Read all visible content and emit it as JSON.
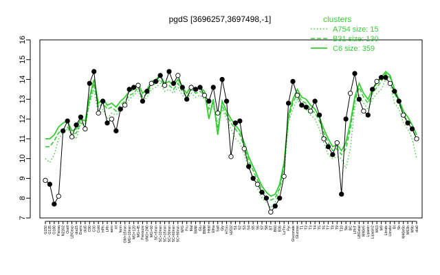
{
  "chart_data": {
    "type": "line",
    "title": "pgdS [3696257,3697498,-1]",
    "xlabel": "",
    "ylabel": "",
    "ylim": [
      7,
      16
    ],
    "yticks": [
      7,
      8,
      9,
      10,
      11,
      12,
      13,
      14,
      15,
      16
    ],
    "grid": false,
    "legend_title": "clusters",
    "legend_position": "top-right",
    "categories": [
      "G150",
      "G135",
      "G180",
      "Pairaq",
      "N2262",
      "Oxctl",
      "LBGexp",
      "dia15",
      "Diami",
      "dia5",
      "C90",
      "C30",
      "Cold",
      "HPh",
      "LPh",
      "aero",
      "nit",
      "ferm",
      "GM+15min",
      "MG+10min",
      "MG+120",
      "MG+45",
      "Pressure",
      "UNG+240",
      "MG+60",
      "SC+5min",
      "SC+10min",
      "SC+15min",
      "SC+30min",
      "SC+60min",
      "SC+90min",
      "M/G",
      "Fru",
      "Mal",
      "SMM",
      "Glu",
      "BMM",
      "Heat",
      "Etha",
      "Salt",
      "Gly",
      "HTim",
      "H2O2",
      "S1",
      "S2",
      "S3",
      "S4",
      "S5",
      "S6",
      "S7",
      "S8",
      "BT",
      "B60",
      "B36",
      "LoTm",
      "Pyr",
      "Gluconate",
      "Glucose",
      "T1",
      "T2",
      "T3",
      "T4",
      "T5",
      "T6",
      "T7",
      "T8",
      "T9",
      "T10",
      "Sw",
      "BC",
      "LPhT",
      "LBGstat",
      "M40e5",
      "Lipasin",
      "Lipasin2",
      "M63",
      "M9",
      "Lbrats",
      "Lbratsi",
      "BI",
      "Sb",
      "M40e5b",
      "M63b",
      "M9b",
      "dia0"
    ],
    "series": [
      {
        "name": "A754 size: 15",
        "style": "dotted",
        "color": "#33cc33",
        "values": [
          10.0,
          9.8,
          10.2,
          11.0,
          11.3,
          11.5,
          11.2,
          11.0,
          11.8,
          11.6,
          12.8,
          13.5,
          12.2,
          12.5,
          12.0,
          12.3,
          12.2,
          12.5,
          12.7,
          13.0,
          13.2,
          13.4,
          12.9,
          13.1,
          13.5,
          13.6,
          13.8,
          13.4,
          13.5,
          13.3,
          13.6,
          13.2,
          13.0,
          13.3,
          13.1,
          13.2,
          13.0,
          12.7,
          12.6,
          11.8,
          12.5,
          12.0,
          11.5,
          11.0,
          10.8,
          10.2,
          9.5,
          9.0,
          8.5,
          8.0,
          7.8,
          7.5,
          7.8,
          8.4,
          9.2,
          11.8,
          12.5,
          13.0,
          12.6,
          12.5,
          12.2,
          12.0,
          11.5,
          10.8,
          10.2,
          10.0,
          10.1,
          10.0,
          9.5,
          10.5,
          12.6,
          13.2,
          12.8,
          12.5,
          13.0,
          13.3,
          13.5,
          14.0,
          13.8,
          12.8,
          12.5,
          11.8,
          11.5,
          11.0,
          10.0
        ]
      },
      {
        "name": "B31 size: 130",
        "style": "dashed",
        "color": "#33cc33",
        "values": [
          10.6,
          10.6,
          10.9,
          11.3,
          11.5,
          11.6,
          11.2,
          11.3,
          11.8,
          11.7,
          12.9,
          13.8,
          12.6,
          12.8,
          12.5,
          12.6,
          12.4,
          12.7,
          12.9,
          13.2,
          13.3,
          13.6,
          13.1,
          13.3,
          13.7,
          13.8,
          14.0,
          13.6,
          13.7,
          13.5,
          13.8,
          13.4,
          13.1,
          13.5,
          13.3,
          13.4,
          13.2,
          12.5,
          12.8,
          11.5,
          12.7,
          12.2,
          11.8,
          11.5,
          11.2,
          10.6,
          9.9,
          9.4,
          8.9,
          8.4,
          8.1,
          7.9,
          8.0,
          8.5,
          9.6,
          12.0,
          12.8,
          13.3,
          12.9,
          12.8,
          12.5,
          12.3,
          11.9,
          11.3,
          10.8,
          10.4,
          10.5,
          10.2,
          10.5,
          11.5,
          12.9,
          13.6,
          13.1,
          12.8,
          13.3,
          13.6,
          13.9,
          14.3,
          14.1,
          13.3,
          12.8,
          12.2,
          11.9,
          11.5,
          11.0
        ]
      },
      {
        "name": "C6 size: 359",
        "style": "solid",
        "color": "#33cc33",
        "values": [
          11.0,
          11.0,
          11.2,
          11.6,
          11.8,
          11.9,
          11.4,
          11.5,
          12.0,
          11.9,
          13.1,
          14.0,
          12.8,
          13.0,
          12.7,
          12.8,
          12.6,
          12.9,
          13.1,
          13.4,
          13.5,
          13.8,
          13.3,
          13.5,
          13.9,
          14.0,
          14.2,
          13.8,
          13.9,
          13.7,
          14.0,
          13.6,
          13.3,
          13.7,
          13.5,
          13.6,
          13.4,
          12.0,
          13.0,
          11.2,
          12.9,
          12.4,
          12.0,
          11.7,
          11.4,
          10.8,
          10.1,
          9.6,
          9.1,
          8.6,
          8.3,
          8.1,
          8.2,
          8.7,
          9.8,
          12.2,
          13.0,
          13.5,
          13.1,
          13.0,
          12.7,
          12.5,
          12.1,
          11.5,
          11.0,
          10.6,
          10.7,
          10.4,
          10.8,
          11.8,
          13.1,
          13.8,
          13.3,
          13.0,
          13.5,
          13.8,
          14.1,
          14.4,
          14.2,
          13.5,
          13.0,
          12.4,
          12.1,
          11.7,
          11.2
        ]
      },
      {
        "name": "",
        "style": "points",
        "color": "#000000",
        "values": [
          8.9,
          8.7,
          7.7,
          8.1,
          11.4,
          11.9,
          11.1,
          11.7,
          12.1,
          11.5,
          13.8,
          14.4,
          12.3,
          12.9,
          11.8,
          12.0,
          11.4,
          12.5,
          12.7,
          13.5,
          13.6,
          13.7,
          12.9,
          13.4,
          13.8,
          13.9,
          14.2,
          13.7,
          14.4,
          13.8,
          14.2,
          13.6,
          13.0,
          13.6,
          13.5,
          13.6,
          13.2,
          12.9,
          13.6,
          12.3,
          14.0,
          12.9,
          10.1,
          11.8,
          11.9,
          10.5,
          9.6,
          9.0,
          8.7,
          8.3,
          8.0,
          7.3,
          7.6,
          8.0,
          9.1,
          12.8,
          13.9,
          13.2,
          12.7,
          12.6,
          12.4,
          12.9,
          12.2,
          11.0,
          10.6,
          10.2,
          10.8,
          8.2,
          12.0,
          13.3,
          14.3,
          13.0,
          12.4,
          12.2,
          13.5,
          13.9,
          14.1,
          14.1,
          13.8,
          13.4,
          12.9,
          12.2,
          11.8,
          11.5,
          11.0
        ]
      }
    ]
  }
}
